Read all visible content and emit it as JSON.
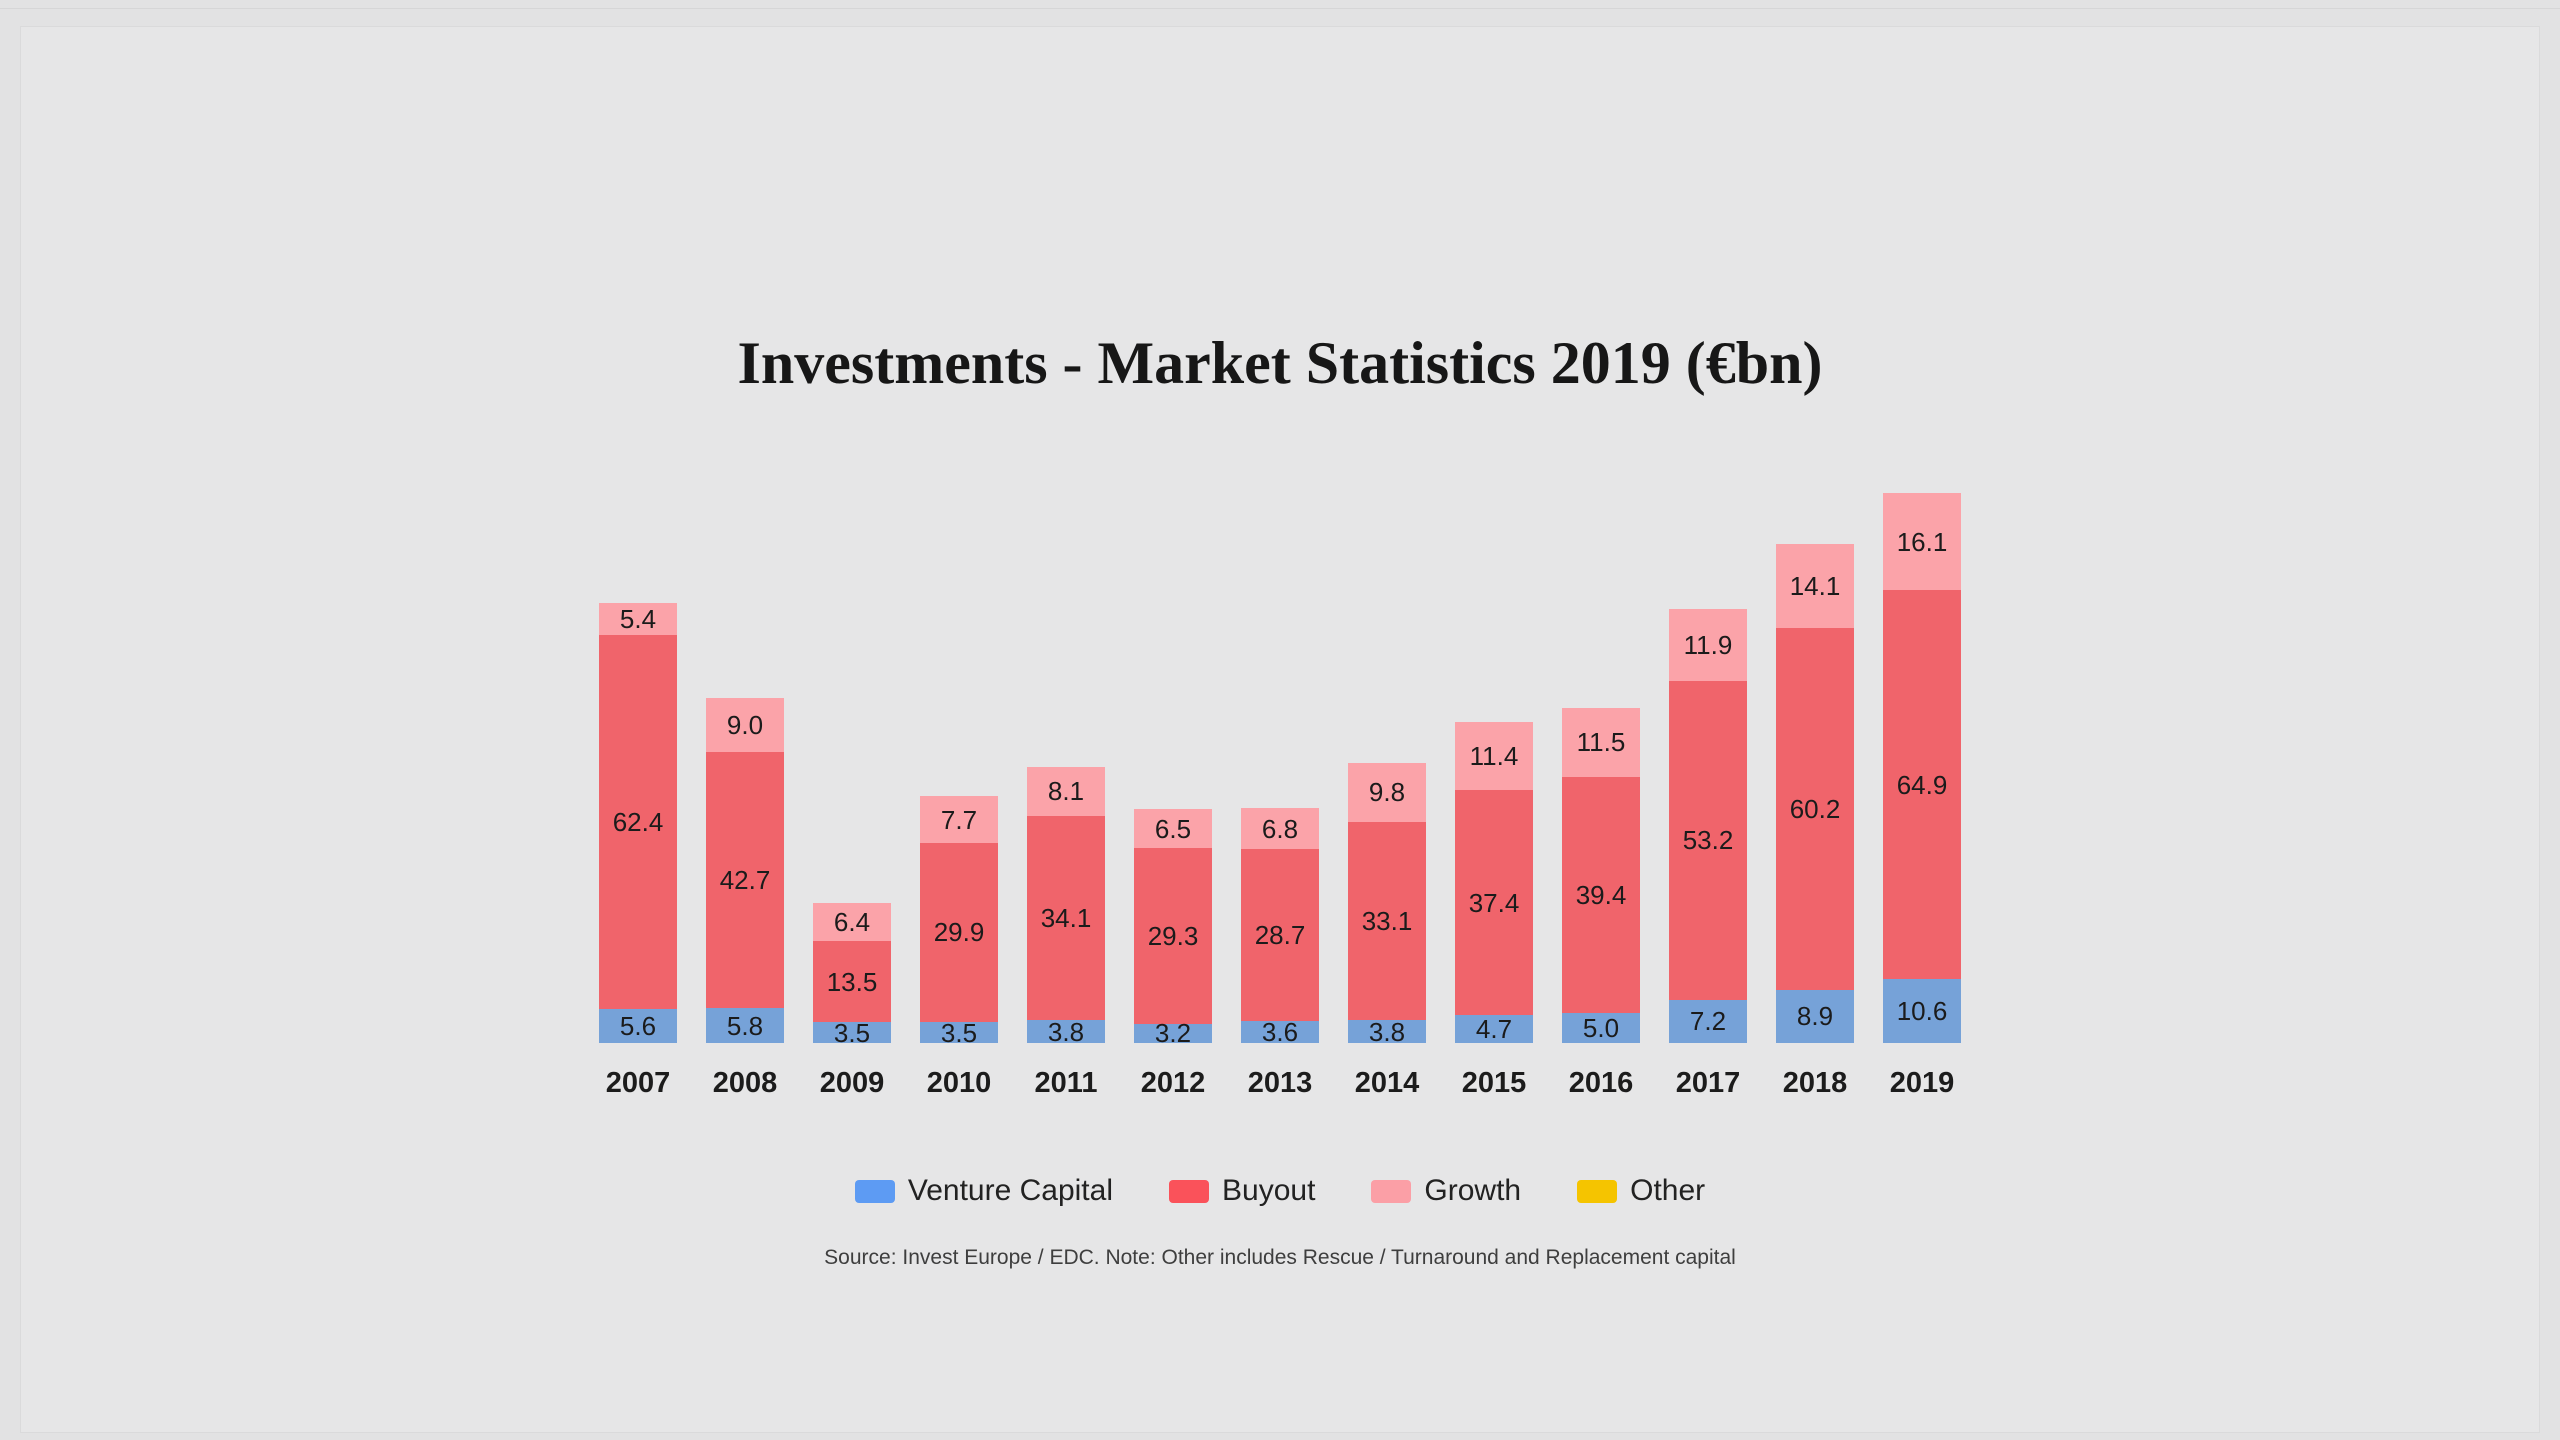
{
  "title": "Investments - Market Statistics 2019 (€bn)",
  "source_note": "Source: Invest Europe / EDC. Note: Other includes Rescue / Turnaround and Replacement capital",
  "colors": {
    "background": "#e6e6e7",
    "bar_venture_capital": "#76a2d8",
    "bar_buyout": "#f0646b",
    "bar_growth": "#fba3a9",
    "legend_venture_capital": "#5d9bf3",
    "legend_buyout": "#fa525a",
    "legend_growth": "#fb9fa6",
    "legend_other": "#f5c400",
    "label_text": "#1b1b1b"
  },
  "chart_data": {
    "type": "bar",
    "stacked": true,
    "title": "Investments - Market Statistics 2019 (€bn)",
    "unit": "€bn",
    "grid": false,
    "value_labels": true,
    "legend_position": "bottom",
    "ylim": [
      0,
      92
    ],
    "categories": [
      "2007",
      "2008",
      "2009",
      "2010",
      "2011",
      "2012",
      "2013",
      "2014",
      "2015",
      "2016",
      "2017",
      "2018",
      "2019"
    ],
    "series": [
      {
        "name": "Venture Capital",
        "color": "#76a2d8",
        "legend_color": "#5d9bf3",
        "values": [
          5.6,
          5.8,
          3.5,
          3.5,
          3.8,
          3.2,
          3.6,
          3.8,
          4.7,
          5.0,
          7.2,
          8.9,
          10.6
        ]
      },
      {
        "name": "Buyout",
        "color": "#f0646b",
        "legend_color": "#fa525a",
        "values": [
          62.4,
          42.7,
          13.5,
          29.9,
          34.1,
          29.3,
          28.7,
          33.1,
          37.4,
          39.4,
          53.2,
          60.2,
          64.9
        ]
      },
      {
        "name": "Growth",
        "color": "#fba3a9",
        "legend_color": "#fb9fa6",
        "values": [
          5.4,
          9.0,
          6.4,
          7.7,
          8.1,
          6.5,
          6.8,
          9.8,
          11.4,
          11.5,
          11.9,
          14.1,
          16.1
        ]
      },
      {
        "name": "Other",
        "color": "#f5c400",
        "legend_color": "#f5c400",
        "values": [
          0,
          0,
          0,
          0,
          0,
          0,
          0,
          0,
          0,
          0,
          0,
          0,
          0
        ]
      }
    ]
  }
}
